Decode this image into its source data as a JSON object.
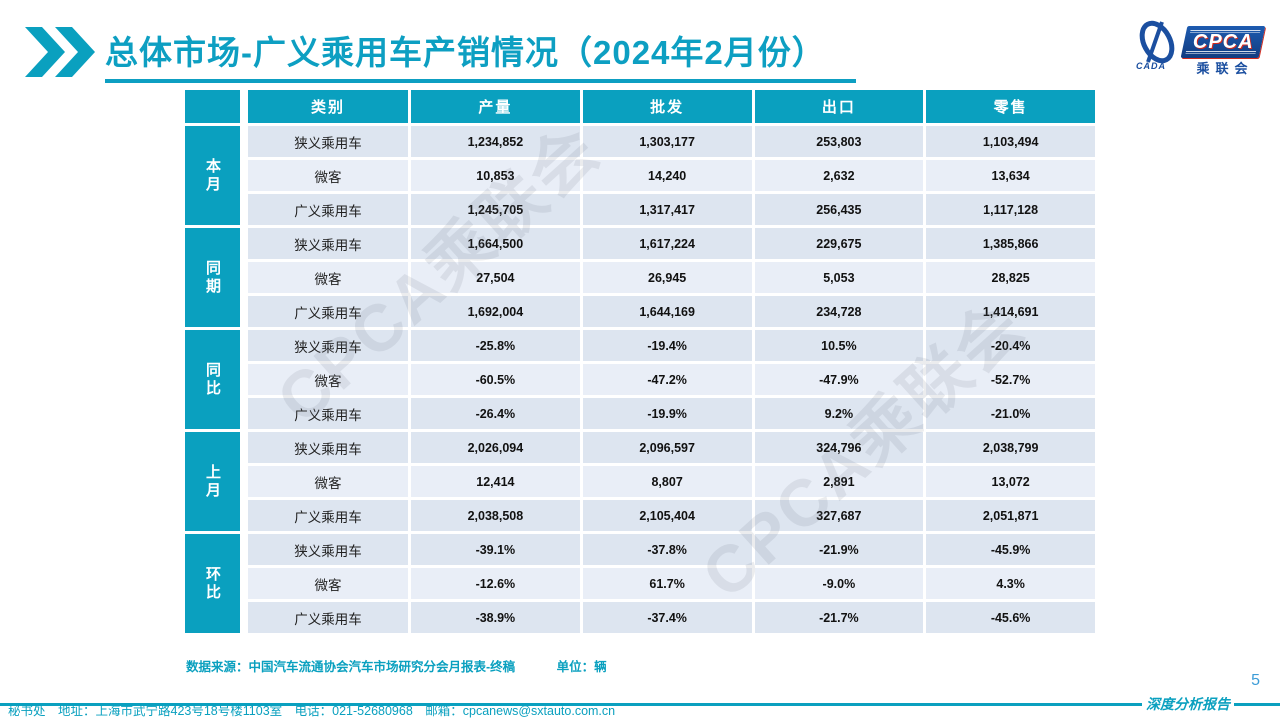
{
  "title": "总体市场-广义乘用车产销情况（2024年2月份）",
  "logo": {
    "cpca": "CPCA",
    "cada": "CADA",
    "cn": "乘联会"
  },
  "watermark": "CPCA乘联会",
  "chart_data": {
    "type": "table",
    "title": "总体市场-广义乘用车产销情况（2024年2月份）",
    "columns": [
      "类别",
      "产量",
      "批发",
      "出口",
      "零售"
    ],
    "row_groups": [
      "本月",
      "同期",
      "同比",
      "上月",
      "环比"
    ],
    "unit": "辆"
  },
  "table": {
    "headers": [
      "类别",
      "产量",
      "批发",
      "出口",
      "零售"
    ],
    "groups": [
      {
        "label": "本月",
        "rows": [
          {
            "category": "狭义乘用车",
            "values": [
              "1,234,852",
              "1,303,177",
              "253,803",
              "1,103,494"
            ]
          },
          {
            "category": "微客",
            "values": [
              "10,853",
              "14,240",
              "2,632",
              "13,634"
            ]
          },
          {
            "category": "广义乘用车",
            "values": [
              "1,245,705",
              "1,317,417",
              "256,435",
              "1,117,128"
            ]
          }
        ]
      },
      {
        "label": "同期",
        "rows": [
          {
            "category": "狭义乘用车",
            "values": [
              "1,664,500",
              "1,617,224",
              "229,675",
              "1,385,866"
            ]
          },
          {
            "category": "微客",
            "values": [
              "27,504",
              "26,945",
              "5,053",
              "28,825"
            ]
          },
          {
            "category": "广义乘用车",
            "values": [
              "1,692,004",
              "1,644,169",
              "234,728",
              "1,414,691"
            ]
          }
        ]
      },
      {
        "label": "同比",
        "rows": [
          {
            "category": "狭义乘用车",
            "values": [
              "-25.8%",
              "-19.4%",
              "10.5%",
              "-20.4%"
            ]
          },
          {
            "category": "微客",
            "values": [
              "-60.5%",
              "-47.2%",
              "-47.9%",
              "-52.7%"
            ]
          },
          {
            "category": "广义乘用车",
            "values": [
              "-26.4%",
              "-19.9%",
              "9.2%",
              "-21.0%"
            ]
          }
        ]
      },
      {
        "label": "上月",
        "rows": [
          {
            "category": "狭义乘用车",
            "values": [
              "2,026,094",
              "2,096,597",
              "324,796",
              "2,038,799"
            ]
          },
          {
            "category": "微客",
            "values": [
              "12,414",
              "8,807",
              "2,891",
              "13,072"
            ]
          },
          {
            "category": "广义乘用车",
            "values": [
              "2,038,508",
              "2,105,404",
              "327,687",
              "2,051,871"
            ]
          }
        ]
      },
      {
        "label": "环比",
        "rows": [
          {
            "category": "狭义乘用车",
            "values": [
              "-39.1%",
              "-37.8%",
              "-21.9%",
              "-45.9%"
            ]
          },
          {
            "category": "微客",
            "values": [
              "-12.6%",
              "61.7%",
              "-9.0%",
              "4.3%"
            ]
          },
          {
            "category": "广义乘用车",
            "values": [
              "-38.9%",
              "-37.4%",
              "-21.7%",
              "-45.6%"
            ]
          }
        ]
      }
    ]
  },
  "source_note": "数据来源：中国汽车流通协会汽车市场研究分会月报表-终稿",
  "unit_note": "单位：辆",
  "footer": {
    "left": "秘书处　地址：上海市武宁路423号18号楼1103室　电话：021-52680968　邮箱：cpcanews@sxtauto.com.cn",
    "right": "深度分析报告",
    "page": "5"
  },
  "colors": {
    "accent": "#0aa0bf",
    "title": "#0d9fc2",
    "cell_bg": "#dde5f0",
    "cell_bg_alt": "#e9eef7",
    "logo_blue": "#1b4fa0",
    "logo_red": "#d42b1e",
    "page_num": "#3c9cd7"
  }
}
